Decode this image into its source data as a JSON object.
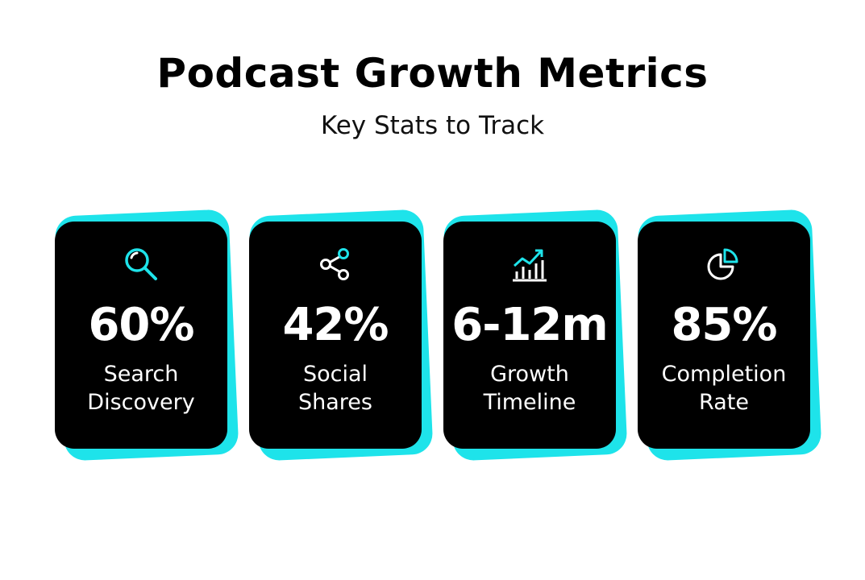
{
  "header": {
    "title": "Podcast Growth Metrics",
    "subtitle": "Key Stats to Track"
  },
  "colors": {
    "accent": "#1ee3ea",
    "card": "#000000",
    "text": "#ffffff"
  },
  "cards": [
    {
      "icon": "magnifier-icon",
      "value": "60%",
      "label_line1": "Search",
      "label_line2": "Discovery"
    },
    {
      "icon": "share-icon",
      "value": "42%",
      "label_line1": "Social",
      "label_line2": "Shares"
    },
    {
      "icon": "growth-chart-icon",
      "value": "6-12m",
      "label_line1": "Growth",
      "label_line2": "Timeline"
    },
    {
      "icon": "pie-chart-icon",
      "value": "85%",
      "label_line1": "Completion",
      "label_line2": "Rate"
    }
  ]
}
